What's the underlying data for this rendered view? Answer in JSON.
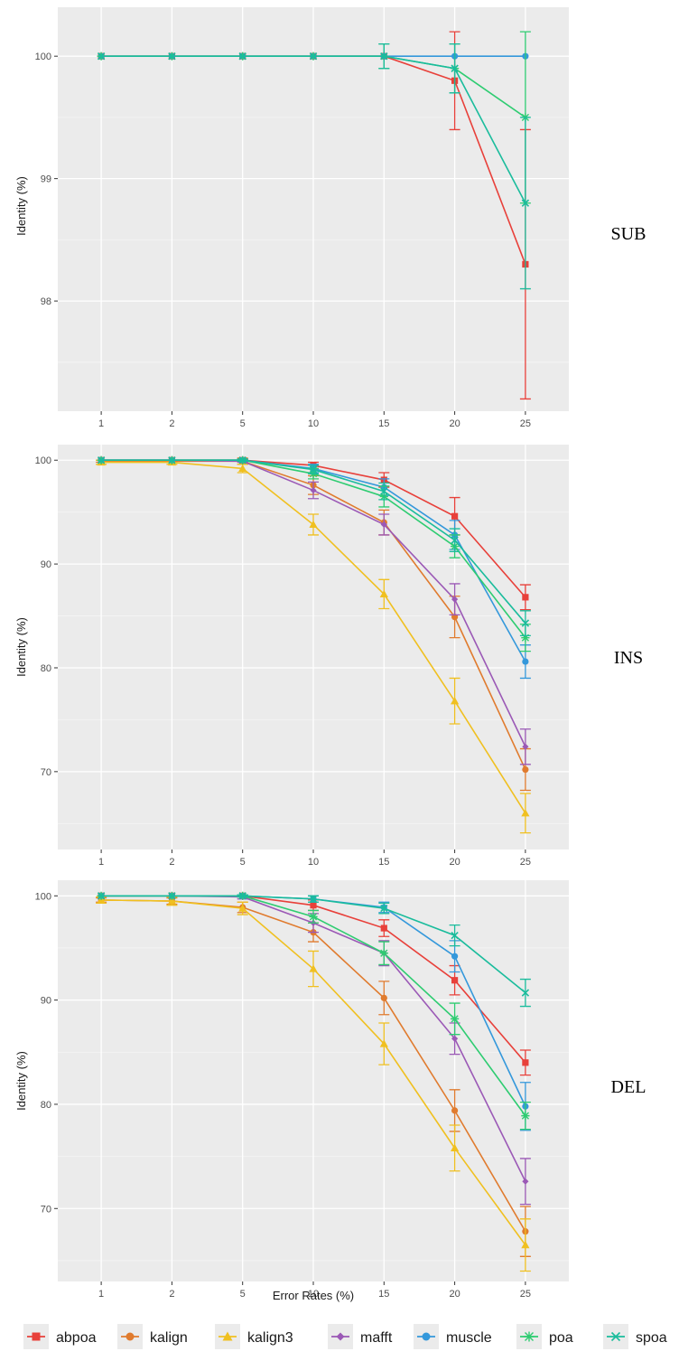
{
  "figure": {
    "xlabel": "Error Rates (%)",
    "ylabel": "Identity (%)"
  },
  "legend": {
    "position": "bottom",
    "items": [
      {
        "name": "abpoa",
        "color": "#e8403a",
        "shape": "square"
      },
      {
        "name": "kalign",
        "color": "#e07b2e",
        "shape": "circle"
      },
      {
        "name": "kalign3",
        "color": "#f0c020",
        "shape": "triangle"
      },
      {
        "name": "mafft",
        "color": "#9b59b6",
        "shape": "diamond"
      },
      {
        "name": "muscle",
        "color": "#3498db",
        "shape": "circle"
      },
      {
        "name": "poa",
        "color": "#2ecc71",
        "shape": "asterisk"
      },
      {
        "name": "spoa",
        "color": "#1abc9c",
        "shape": "x"
      }
    ]
  },
  "chart_data": [
    {
      "type": "line",
      "panel_label": "SUB",
      "categories": [
        "1",
        "2",
        "5",
        "10",
        "15",
        "20",
        "25"
      ],
      "ylim": [
        97.1,
        100.4
      ],
      "yticks": [
        98,
        99,
        100
      ],
      "grid": true,
      "series": [
        {
          "name": "abpoa",
          "values": [
            100,
            100,
            100,
            100,
            100,
            99.8,
            98.3
          ],
          "err": [
            0,
            0,
            0,
            0,
            0,
            0.4,
            1.1
          ]
        },
        {
          "name": "muscle",
          "values": [
            100,
            100,
            100,
            100,
            100,
            100,
            100
          ],
          "err": [
            0,
            0,
            0,
            0,
            0,
            0,
            0
          ]
        },
        {
          "name": "poa",
          "values": [
            100,
            100,
            100,
            100,
            100,
            99.9,
            99.5
          ],
          "err": [
            0,
            0,
            0,
            0,
            0.1,
            0.2,
            0.7
          ]
        },
        {
          "name": "spoa",
          "values": [
            100,
            100,
            100,
            100,
            100,
            99.9,
            98.8
          ],
          "err": [
            0,
            0,
            0,
            0,
            0.1,
            0.2,
            0.7
          ]
        }
      ]
    },
    {
      "type": "line",
      "panel_label": "INS",
      "categories": [
        "1",
        "2",
        "5",
        "10",
        "15",
        "20",
        "25"
      ],
      "ylim": [
        62.5,
        101.5
      ],
      "yticks": [
        70,
        80,
        90,
        100
      ],
      "grid": true,
      "series": [
        {
          "name": "abpoa",
          "values": [
            100,
            100,
            100,
            99.5,
            98.1,
            94.6,
            86.8
          ],
          "err": [
            0,
            0,
            0.1,
            0.3,
            0.7,
            1.8,
            1.2
          ]
        },
        {
          "name": "kalign",
          "values": [
            99.9,
            99.9,
            99.9,
            97.6,
            94.0,
            84.9,
            70.2
          ],
          "err": [
            0.1,
            0.1,
            0.3,
            0.9,
            1.2,
            2.0,
            2.0
          ]
        },
        {
          "name": "kalign3",
          "values": [
            99.8,
            99.8,
            99.2,
            93.8,
            87.1,
            76.8,
            66.0
          ],
          "err": [
            0.2,
            0.2,
            0.4,
            1.0,
            1.4,
            2.2,
            1.9
          ]
        },
        {
          "name": "mafft",
          "values": [
            100,
            100,
            99.9,
            97.1,
            93.8,
            86.6,
            72.4
          ],
          "err": [
            0,
            0,
            0.1,
            0.8,
            1.0,
            1.5,
            1.7
          ]
        },
        {
          "name": "muscle",
          "values": [
            100,
            100,
            100,
            99.2,
            97.4,
            92.8,
            80.6
          ],
          "err": [
            0,
            0,
            0.1,
            0.4,
            0.8,
            1.4,
            1.6
          ]
        },
        {
          "name": "poa",
          "values": [
            100,
            100,
            100,
            98.7,
            96.5,
            91.7,
            82.9
          ],
          "err": [
            0,
            0,
            0.1,
            0.5,
            1.0,
            1.1,
            1.3
          ]
        },
        {
          "name": "spoa",
          "values": [
            100,
            100,
            100,
            99.1,
            97.0,
            92.3,
            84.3
          ],
          "err": [
            0,
            0,
            0.1,
            0.4,
            0.8,
            1.1,
            1.2
          ]
        }
      ]
    },
    {
      "type": "line",
      "panel_label": "DEL",
      "categories": [
        "1",
        "2",
        "5",
        "10",
        "15",
        "20",
        "25"
      ],
      "ylim": [
        63,
        101.5
      ],
      "yticks": [
        70,
        80,
        90,
        100
      ],
      "grid": true,
      "series": [
        {
          "name": "abpoa",
          "values": [
            100,
            100,
            100,
            99.1,
            96.9,
            91.9,
            84.0
          ],
          "err": [
            0,
            0,
            0.1,
            0.5,
            0.8,
            1.4,
            1.2
          ]
        },
        {
          "name": "kalign",
          "values": [
            99.6,
            99.5,
            98.9,
            96.5,
            90.2,
            79.4,
            67.8
          ],
          "err": [
            0.2,
            0.3,
            0.5,
            0.9,
            1.6,
            2.0,
            2.4
          ]
        },
        {
          "name": "kalign3",
          "values": [
            99.6,
            99.5,
            98.8,
            93.0,
            85.8,
            75.8,
            66.5
          ],
          "err": [
            0.3,
            0.4,
            0.6,
            1.7,
            2.0,
            2.2,
            2.5
          ]
        },
        {
          "name": "mafft",
          "values": [
            100,
            100,
            99.9,
            97.4,
            94.5,
            86.3,
            72.6
          ],
          "err": [
            0,
            0,
            0.2,
            0.9,
            1.2,
            1.5,
            2.2
          ]
        },
        {
          "name": "muscle",
          "values": [
            100,
            100,
            100,
            99.7,
            98.9,
            94.2,
            79.8
          ],
          "err": [
            0,
            0,
            0.1,
            0.3,
            0.5,
            1.5,
            2.3
          ]
        },
        {
          "name": "poa",
          "values": [
            100,
            100,
            100,
            98.0,
            94.5,
            88.2,
            78.9
          ],
          "err": [
            0,
            0,
            0.1,
            0.6,
            1.1,
            1.5,
            1.3
          ]
        },
        {
          "name": "spoa",
          "values": [
            100,
            100,
            100,
            99.7,
            98.8,
            96.2,
            90.7
          ],
          "err": [
            0,
            0,
            0.1,
            0.3,
            0.5,
            1.0,
            1.3
          ]
        }
      ]
    }
  ]
}
